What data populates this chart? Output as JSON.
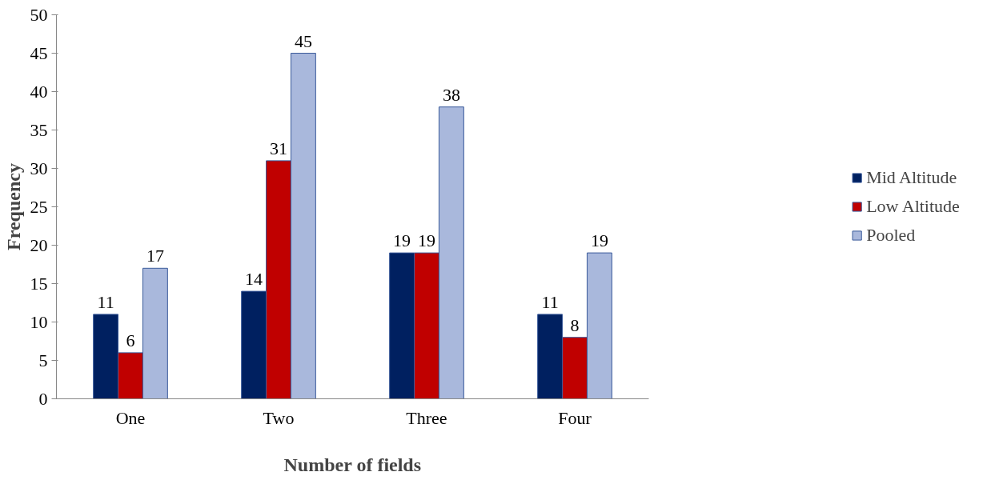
{
  "chart_data": {
    "type": "bar",
    "xlabel": "Number of fields",
    "ylabel": "Frequency",
    "categories": [
      "One",
      "Two",
      "Three",
      "Four"
    ],
    "series": [
      {
        "name": "Mid Altitude",
        "color": "#002060",
        "values": [
          11,
          14,
          19,
          11
        ]
      },
      {
        "name": "Low Altitude",
        "color": "#c00000",
        "values": [
          6,
          31,
          19,
          8
        ]
      },
      {
        "name": "Pooled",
        "color": "#a9b8dc",
        "values": [
          17,
          45,
          38,
          19
        ]
      }
    ],
    "ylim": [
      0,
      50
    ],
    "yticks": [
      0,
      5,
      10,
      15,
      20,
      25,
      30,
      35,
      40,
      45,
      50
    ],
    "data_labels": true,
    "grid": false,
    "legend": "right"
  }
}
